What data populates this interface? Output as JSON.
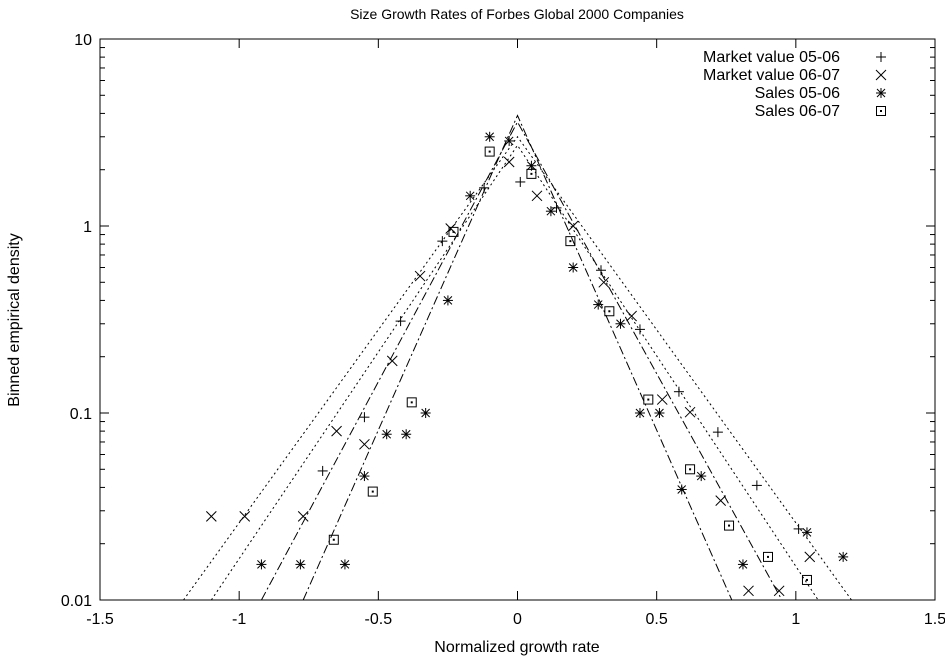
{
  "chart_data": {
    "type": "scatter",
    "title": "Size Growth Rates of Forbes Global 2000 Companies",
    "xlabel": "Normalized growth rate",
    "ylabel": "Binned empirical density",
    "xlim": [
      -1.5,
      1.5
    ],
    "ylim": [
      0.01,
      10
    ],
    "yscale": "log",
    "grid": false,
    "legend_position": "top-right",
    "x_ticks": [
      "-1.5",
      "-1",
      "-0.5",
      "0",
      "0.5",
      "1",
      "1.5"
    ],
    "y_ticks": [
      "0.01",
      "0.1",
      "1",
      "10"
    ],
    "series": [
      {
        "name": "Market value 05-06",
        "marker": "plus",
        "points": [
          [
            -0.7,
            0.049
          ],
          [
            -0.55,
            0.095
          ],
          [
            -0.42,
            0.31
          ],
          [
            -0.27,
            0.83
          ],
          [
            -0.12,
            1.6
          ],
          [
            0.01,
            1.72
          ],
          [
            0.14,
            1.25
          ],
          [
            0.3,
            0.58
          ],
          [
            0.44,
            0.28
          ],
          [
            0.58,
            0.13
          ],
          [
            0.72,
            0.079
          ],
          [
            0.86,
            0.041
          ],
          [
            1.01,
            0.024
          ]
        ]
      },
      {
        "name": "Market value 06-07",
        "marker": "cross",
        "points": [
          [
            -1.1,
            0.028
          ],
          [
            -0.98,
            0.028
          ],
          [
            -0.77,
            0.028
          ],
          [
            -0.65,
            0.08
          ],
          [
            -0.55,
            0.068
          ],
          [
            -0.45,
            0.19
          ],
          [
            -0.35,
            0.54
          ],
          [
            -0.24,
            0.97
          ],
          [
            -0.03,
            2.2
          ],
          [
            0.07,
            1.45
          ],
          [
            0.2,
            1.0
          ],
          [
            0.31,
            0.5
          ],
          [
            0.41,
            0.33
          ],
          [
            0.52,
            0.118
          ],
          [
            0.62,
            0.101
          ],
          [
            0.73,
            0.034
          ],
          [
            0.83,
            0.0112
          ],
          [
            0.94,
            0.0112
          ],
          [
            1.05,
            0.017
          ]
        ]
      },
      {
        "name": "Sales 05-06",
        "marker": "star",
        "points": [
          [
            -0.92,
            0.0155
          ],
          [
            -0.78,
            0.0155
          ],
          [
            -0.62,
            0.0155
          ],
          [
            -0.55,
            0.046
          ],
          [
            -0.47,
            0.077
          ],
          [
            -0.4,
            0.077
          ],
          [
            -0.33,
            0.1
          ],
          [
            -0.25,
            0.4
          ],
          [
            -0.17,
            1.45
          ],
          [
            -0.1,
            3.0
          ],
          [
            -0.03,
            2.85
          ],
          [
            0.05,
            2.1
          ],
          [
            0.12,
            1.2
          ],
          [
            0.2,
            0.6
          ],
          [
            0.29,
            0.38
          ],
          [
            0.37,
            0.3
          ],
          [
            0.44,
            0.1
          ],
          [
            0.51,
            0.1
          ],
          [
            0.59,
            0.039
          ],
          [
            0.66,
            0.046
          ],
          [
            0.81,
            0.0155
          ],
          [
            1.04,
            0.023
          ],
          [
            1.17,
            0.017
          ]
        ]
      },
      {
        "name": "Sales 06-07",
        "marker": "boxdot",
        "points": [
          [
            -0.66,
            0.021
          ],
          [
            -0.52,
            0.038
          ],
          [
            -0.38,
            0.114
          ],
          [
            -0.23,
            0.93
          ],
          [
            -0.1,
            2.5
          ],
          [
            0.05,
            1.9
          ],
          [
            0.19,
            0.83
          ],
          [
            0.33,
            0.35
          ],
          [
            0.47,
            0.118
          ],
          [
            0.62,
            0.05
          ],
          [
            0.76,
            0.025
          ],
          [
            0.9,
            0.017
          ],
          [
            1.04,
            0.0128
          ]
        ]
      }
    ],
    "fit_lines": [
      {
        "style": "dotted",
        "peak": 3.0,
        "left_x_at_ymin": -1.2,
        "right_x_at_ymin": 1.2
      },
      {
        "style": "dotted",
        "peak": 2.7,
        "left_x_at_ymin": -1.1,
        "right_x_at_ymin": 1.08
      },
      {
        "style": "dash-dot",
        "peak": 3.6,
        "left_x_at_ymin": -0.92,
        "right_x_at_ymin": 0.95
      },
      {
        "style": "dash-dot",
        "peak": 3.9,
        "left_x_at_ymin": -0.77,
        "right_x_at_ymin": 0.77
      }
    ]
  }
}
